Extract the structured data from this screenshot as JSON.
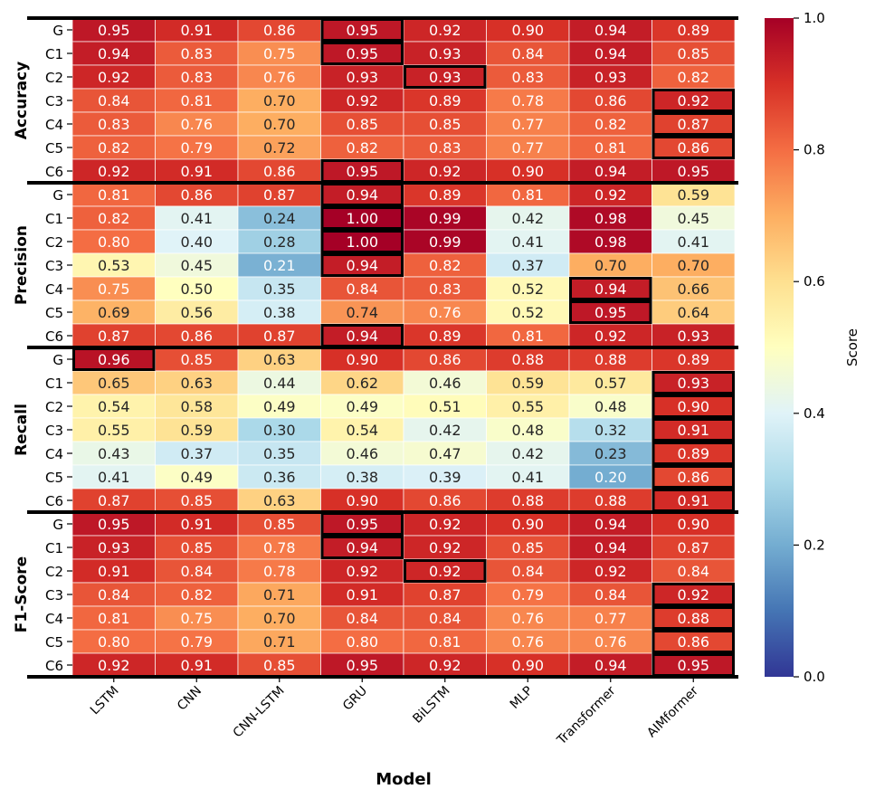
{
  "chart_data": {
    "type": "heatmap",
    "xlabel": "Model",
    "colorbar_label": "Score",
    "colormap": "RdYlBu_r",
    "vmin": 0.0,
    "vmax": 1.0,
    "colorbar_ticks": [
      "0.0",
      "0.2",
      "0.4",
      "0.6",
      "0.8",
      "1.0"
    ],
    "columns": [
      "LSTM",
      "CNN",
      "CNN-LSTM",
      "GRU",
      "BiLSTM",
      "MLP",
      "Transformer",
      "AIMformer"
    ],
    "groups": [
      {
        "name": "Accuracy",
        "rows": [
          "G",
          "C1",
          "C2",
          "C3",
          "C4",
          "C5",
          "C6"
        ],
        "values": [
          [
            0.95,
            0.91,
            0.86,
            0.95,
            0.92,
            0.9,
            0.94,
            0.89
          ],
          [
            0.94,
            0.83,
            0.75,
            0.95,
            0.93,
            0.84,
            0.94,
            0.85
          ],
          [
            0.92,
            0.83,
            0.76,
            0.93,
            0.93,
            0.83,
            0.93,
            0.82
          ],
          [
            0.84,
            0.81,
            0.7,
            0.92,
            0.89,
            0.78,
            0.86,
            0.92
          ],
          [
            0.83,
            0.76,
            0.7,
            0.85,
            0.85,
            0.77,
            0.82,
            0.87
          ],
          [
            0.82,
            0.79,
            0.72,
            0.82,
            0.83,
            0.77,
            0.81,
            0.86
          ],
          [
            0.92,
            0.91,
            0.86,
            0.95,
            0.92,
            0.9,
            0.94,
            0.95
          ]
        ],
        "highlight_columns": [
          "GRU",
          "GRU",
          "BiLSTM",
          "AIMformer",
          "AIMformer",
          "AIMformer",
          "GRU"
        ]
      },
      {
        "name": "Precision",
        "rows": [
          "G",
          "C1",
          "C2",
          "C3",
          "C4",
          "C5",
          "C6"
        ],
        "values": [
          [
            0.81,
            0.86,
            0.87,
            0.94,
            0.89,
            0.81,
            0.92,
            0.59
          ],
          [
            0.82,
            0.41,
            0.24,
            1.0,
            0.99,
            0.42,
            0.98,
            0.45
          ],
          [
            0.8,
            0.4,
            0.28,
            1.0,
            0.99,
            0.41,
            0.98,
            0.41
          ],
          [
            0.53,
            0.45,
            0.21,
            0.94,
            0.82,
            0.37,
            0.7,
            0.7
          ],
          [
            0.75,
            0.5,
            0.35,
            0.84,
            0.83,
            0.52,
            0.94,
            0.66
          ],
          [
            0.69,
            0.56,
            0.38,
            0.74,
            0.76,
            0.52,
            0.95,
            0.64
          ],
          [
            0.87,
            0.86,
            0.87,
            0.94,
            0.89,
            0.81,
            0.92,
            0.93
          ]
        ],
        "highlight_columns": [
          "GRU",
          "GRU",
          "GRU",
          "GRU",
          "Transformer",
          "Transformer",
          "GRU"
        ]
      },
      {
        "name": "Recall",
        "rows": [
          "G",
          "C1",
          "C2",
          "C3",
          "C4",
          "C5",
          "C6"
        ],
        "values": [
          [
            0.96,
            0.85,
            0.63,
            0.9,
            0.86,
            0.88,
            0.88,
            0.89
          ],
          [
            0.65,
            0.63,
            0.44,
            0.62,
            0.46,
            0.59,
            0.57,
            0.93
          ],
          [
            0.54,
            0.58,
            0.49,
            0.49,
            0.51,
            0.55,
            0.48,
            0.9
          ],
          [
            0.55,
            0.59,
            0.3,
            0.54,
            0.42,
            0.48,
            0.32,
            0.91
          ],
          [
            0.43,
            0.37,
            0.35,
            0.46,
            0.47,
            0.42,
            0.23,
            0.89
          ],
          [
            0.41,
            0.49,
            0.36,
            0.38,
            0.39,
            0.41,
            0.2,
            0.86
          ],
          [
            0.87,
            0.85,
            0.63,
            0.9,
            0.86,
            0.88,
            0.88,
            0.91
          ]
        ],
        "highlight_columns": [
          "LSTM",
          "AIMformer",
          "AIMformer",
          "AIMformer",
          "AIMformer",
          "AIMformer",
          "AIMformer"
        ]
      },
      {
        "name": "F1-Score",
        "rows": [
          "G",
          "C1",
          "C2",
          "C3",
          "C4",
          "C5",
          "C6"
        ],
        "values": [
          [
            0.95,
            0.91,
            0.85,
            0.95,
            0.92,
            0.9,
            0.94,
            0.9
          ],
          [
            0.93,
            0.85,
            0.78,
            0.94,
            0.92,
            0.85,
            0.94,
            0.87
          ],
          [
            0.91,
            0.84,
            0.78,
            0.92,
            0.92,
            0.84,
            0.92,
            0.84
          ],
          [
            0.84,
            0.82,
            0.71,
            0.91,
            0.87,
            0.79,
            0.84,
            0.92
          ],
          [
            0.81,
            0.75,
            0.7,
            0.84,
            0.84,
            0.76,
            0.77,
            0.88
          ],
          [
            0.8,
            0.79,
            0.71,
            0.8,
            0.81,
            0.76,
            0.76,
            0.86
          ],
          [
            0.92,
            0.91,
            0.85,
            0.95,
            0.92,
            0.9,
            0.94,
            0.95
          ]
        ],
        "highlight_columns": [
          "GRU",
          "GRU",
          "BiLSTM",
          "AIMformer",
          "AIMformer",
          "AIMformer",
          "AIMformer"
        ]
      }
    ]
  }
}
